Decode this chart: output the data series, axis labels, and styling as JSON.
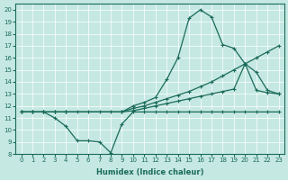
{
  "xlabel": "Humidex (Indice chaleur)",
  "xlim": [
    -0.5,
    23.5
  ],
  "ylim": [
    8,
    20.5
  ],
  "yticks": [
    8,
    9,
    10,
    11,
    12,
    13,
    14,
    15,
    16,
    17,
    18,
    19,
    20
  ],
  "xticks": [
    0,
    1,
    2,
    3,
    4,
    5,
    6,
    7,
    8,
    9,
    10,
    11,
    12,
    13,
    14,
    15,
    16,
    17,
    18,
    19,
    20,
    21,
    22,
    23
  ],
  "bg_color": "#c5e8e2",
  "line_color": "#1a6b5a",
  "line1_x": [
    0,
    1,
    2,
    3,
    4,
    5,
    6,
    7,
    8,
    9,
    10,
    11,
    12,
    13,
    14,
    15,
    16,
    17,
    18,
    19,
    20,
    21,
    22,
    23
  ],
  "line1_y": [
    11.5,
    11.5,
    11.5,
    11.5,
    11.5,
    11.5,
    11.5,
    11.5,
    11.5,
    11.5,
    12.0,
    12.3,
    12.7,
    14.2,
    16.0,
    19.3,
    20.0,
    19.4,
    17.1,
    16.8,
    15.5,
    13.3,
    13.1,
    13.0
  ],
  "line2_x": [
    0,
    1,
    2,
    3,
    4,
    9,
    10,
    11,
    12,
    13,
    14,
    15,
    16,
    17,
    18,
    19,
    20,
    21,
    22,
    23
  ],
  "line2_y": [
    11.5,
    11.5,
    11.5,
    11.5,
    11.5,
    11.5,
    11.8,
    12.0,
    12.3,
    12.6,
    12.9,
    13.2,
    13.6,
    14.0,
    14.5,
    15.0,
    15.5,
    16.0,
    16.5,
    17.0
  ],
  "line3_x": [
    0,
    1,
    2,
    3,
    4,
    9,
    10,
    11,
    12,
    13,
    14,
    15,
    16,
    17,
    18,
    19,
    20,
    21,
    22,
    23
  ],
  "line3_y": [
    11.5,
    11.5,
    11.5,
    11.5,
    11.5,
    11.5,
    11.6,
    11.8,
    12.0,
    12.2,
    12.4,
    12.6,
    12.8,
    13.0,
    13.2,
    13.4,
    15.5,
    14.8,
    13.3,
    13.0
  ],
  "line4_x": [
    0,
    1,
    2,
    3,
    4,
    5,
    6,
    7,
    8,
    9,
    10,
    11,
    12,
    13,
    14,
    15,
    16,
    17,
    18,
    19,
    20,
    21,
    22,
    23
  ],
  "line4_y": [
    11.5,
    11.5,
    11.5,
    11.0,
    10.3,
    9.1,
    9.1,
    9.0,
    8.1,
    10.5,
    11.5,
    11.5,
    11.5,
    11.5,
    11.5,
    11.5,
    11.5,
    11.5,
    11.5,
    11.5,
    11.5,
    11.5,
    11.5,
    11.5
  ]
}
